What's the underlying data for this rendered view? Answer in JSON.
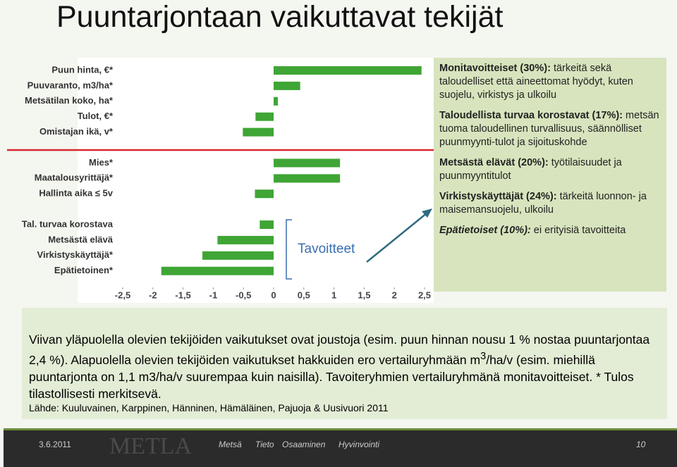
{
  "title": "Puuntarjontaan vaikuttavat tekijät",
  "chart_data": {
    "type": "hbar",
    "categories": [
      "Puun hinta, €*",
      "Puuvaranto, m3/ha*",
      "Metsätilan koko, ha*",
      "Tulot, €*",
      "Omistajan ikä, v*",
      null,
      "Mies*",
      "Maatalousyrittäjä*",
      "Hallinta aika ≤ 5v",
      null,
      "Tal. turvaa korostava",
      "Metsästä elävä",
      "Virkistyskäyttäjä*",
      "Epätietoinen*"
    ],
    "values": [
      2.45,
      0.44,
      0.07,
      -0.3,
      -0.51,
      null,
      1.1,
      1.1,
      -0.31,
      null,
      -0.23,
      -0.93,
      -1.18,
      -1.86
    ],
    "color": "#3fa535",
    "xlim": [
      -2.5,
      2.5
    ],
    "xticks": [
      {
        "value": -2.5,
        "label": "-2,5"
      },
      -2,
      {
        "value": -1.5,
        "label": "-1,5"
      },
      -1,
      {
        "value": -0.5,
        "label": "-0,5"
      },
      0,
      {
        "value": 0.5,
        "label": "0,5"
      },
      1,
      {
        "value": 1.5,
        "label": "1,5"
      },
      2,
      {
        "value": 2.5,
        "label": "2,5"
      }
    ],
    "annotation": "Tavoitteet"
  },
  "legend_box": [
    {
      "head": "Monitavoitteiset (30%):",
      "text": "tärkeitä sekä taloudelliset että aineettomat hyödyt, kuten suojelu, virkistys ja ulkoilu"
    },
    {
      "head": "Taloudellista turvaa korostavat (17%):",
      "text": "metsän tuoma taloudellinen turvallisuus, säännölliset puunmyynti-tulot ja sijoituskohde"
    },
    {
      "head": "Metsästä elävät (20%):",
      "text": "työtilaisuudet ja puunmyyntitulot"
    },
    {
      "head": "Virkistyskäyttäjät (24%):",
      "text": "tärkeitä luonnon- ja maisemansuojelu, ulkoilu"
    },
    {
      "head": "Epätietoiset (10%):",
      "text": "ei erityisiä tavoitteita"
    }
  ],
  "note": {
    "part1": "Viivan yläpuolella olevien tekijöiden vaikutukset ovat joustoja (esim. puun hinnan nousu 1 % nostaa puuntarjontaa 2,4 %). Alapuolella olevien tekijöiden vaikutukset hakkuiden ero vertailuryhmään m",
    "sup": "3",
    "part2": "/ha/v (esim. miehillä puuntarjonta on 1,1 m3/ha/v suurempaa kuin naisilla). Tavoiteryhmien vertailuryhmänä monitavoitteiset. * Tulos tilastollisesti merkitsevä.",
    "source": "Lähde: Kuuluvainen, Karppinen, Hänninen, Hämäläinen, Pajuoja & Uusivuori  2011"
  },
  "footer": {
    "date": "3.6.2011",
    "logo": "METLA",
    "words": [
      "Metsä",
      "Tieto",
      "Osaaminen",
      "Hyvinvointi"
    ],
    "page": "10"
  }
}
